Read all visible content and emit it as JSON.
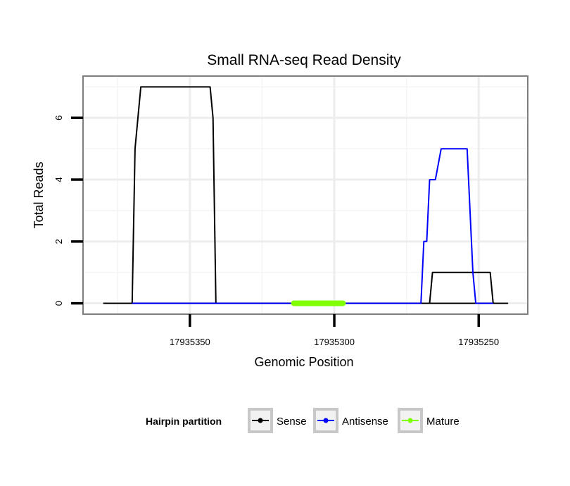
{
  "chart_data": {
    "type": "line",
    "title": "Small RNA-seq Read Density",
    "xlabel": "Genomic Position",
    "ylabel": "Total Reads",
    "xlim": [
      17935387,
      17935233
    ],
    "ylim": [
      -0.35,
      7.35
    ],
    "x_reversed": true,
    "x_ticks": [
      17935350,
      17935300,
      17935250
    ],
    "x_tick_labels": [
      "17935350",
      "17935300",
      "17935250"
    ],
    "y_ticks": [
      0,
      2,
      4,
      6
    ],
    "y_tick_labels": [
      "0",
      "2",
      "4",
      "6"
    ],
    "grid": true,
    "legend": {
      "title": "Hairpin partition",
      "position": "bottom",
      "entries": [
        "Sense",
        "Antisense",
        "Mature"
      ]
    },
    "series": [
      {
        "name": "Sense",
        "color": "#000000",
        "x": [
          17935380,
          17935370,
          17935369,
          17935367,
          17935366,
          17935343,
          17935342,
          17935341,
          17935330,
          17935292,
          17935240,
          17935245,
          17935246,
          17935247,
          17935255,
          17935257,
          17935266,
          17935267,
          17935268,
          17935375
        ],
        "y": [
          0,
          0,
          5,
          7,
          7,
          7,
          6,
          0,
          0,
          0,
          0,
          0,
          1,
          1,
          1,
          1,
          1,
          0,
          0,
          0
        ]
      },
      {
        "name": "Antisense",
        "color": "#0000ff",
        "x": [
          17935370,
          17935280,
          17935270,
          17935269,
          17935268,
          17935267,
          17935266,
          17935265,
          17935263,
          17935262,
          17935254,
          17935253,
          17935252,
          17935251,
          17935250,
          17935249,
          17935248,
          17935245
        ],
        "y": [
          0,
          0,
          0,
          2,
          2,
          4,
          4,
          4,
          5,
          5,
          5,
          3,
          1,
          0,
          0,
          0,
          0,
          0
        ]
      },
      {
        "name": "Mature",
        "color": "#7fff00",
        "x": [
          17935314,
          17935297
        ],
        "y": [
          0,
          0
        ]
      }
    ]
  }
}
